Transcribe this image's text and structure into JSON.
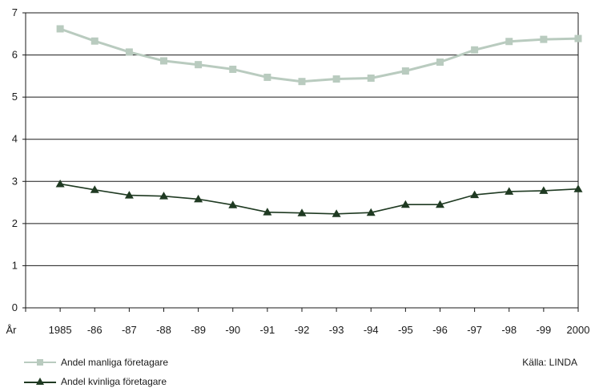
{
  "chart_data": {
    "type": "line",
    "title": "",
    "xlabel": "År",
    "ylabel": "",
    "categories": [
      "1985",
      "-86",
      "-87",
      "-88",
      "-89",
      "-90",
      "-91",
      "-92",
      "-93",
      "-94",
      "-95",
      "-96",
      "-97",
      "-98",
      "-99",
      "2000"
    ],
    "ylim": [
      0,
      7
    ],
    "yticks": [
      "0",
      "1",
      "2",
      "3",
      "4",
      "5",
      "6",
      "7"
    ],
    "grid": true,
    "legend_position": "bottom-left",
    "series": [
      {
        "name": "Andel manliga företagare",
        "color": "#b9cbbf",
        "marker": "square",
        "values": [
          6.62,
          6.33,
          6.07,
          5.86,
          5.77,
          5.66,
          5.47,
          5.37,
          5.43,
          5.45,
          5.62,
          5.83,
          6.12,
          6.32,
          6.37,
          6.39
        ]
      },
      {
        "name": "Andel kvinliga företagare",
        "color": "#1f3a22",
        "marker": "triangle",
        "values": [
          2.94,
          2.8,
          2.67,
          2.65,
          2.58,
          2.44,
          2.27,
          2.25,
          2.23,
          2.26,
          2.45,
          2.45,
          2.68,
          2.76,
          2.78,
          2.82
        ]
      }
    ],
    "source": "Källa: LINDA"
  }
}
